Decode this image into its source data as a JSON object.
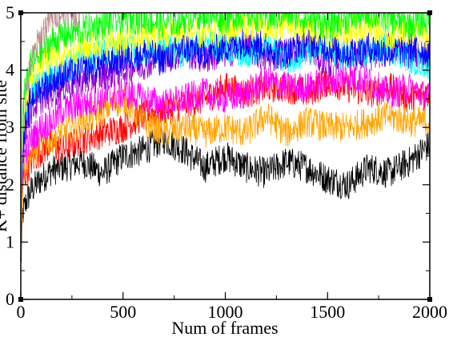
{
  "chart_data": {
    "type": "line",
    "title": "",
    "xlabel": "Num of frames",
    "ylabel": "K+ distance from site",
    "xlim": [
      0,
      2000
    ],
    "ylim": [
      0,
      5
    ],
    "xticks": [
      0,
      500,
      1000,
      1500,
      2000
    ],
    "yticks": [
      0,
      1,
      2,
      3,
      4,
      5
    ],
    "x_tick_labels": [
      "0",
      "500",
      "1000",
      "1500",
      "2000"
    ],
    "y_tick_labels": [
      "0",
      "1",
      "2",
      "3",
      "4",
      "5"
    ],
    "grid": false,
    "legend": "none",
    "series": [
      {
        "color": "#000000",
        "x": [
          0,
          10,
          25,
          50,
          100,
          150,
          200,
          300,
          400,
          500,
          600,
          700,
          800,
          900,
          1000,
          1100,
          1200,
          1300,
          1400,
          1500,
          1600,
          1700,
          1800,
          1900,
          2000
        ],
        "values": [
          0.6,
          1.5,
          1.7,
          1.9,
          2.1,
          2.25,
          2.3,
          2.4,
          2.2,
          2.5,
          2.6,
          2.8,
          2.6,
          2.3,
          2.5,
          2.3,
          2.2,
          2.4,
          2.3,
          2.1,
          2.0,
          2.3,
          2.2,
          2.4,
          2.7
        ]
      },
      {
        "color": "#ff0000",
        "x": [
          0,
          10,
          25,
          50,
          100,
          150,
          200,
          300,
          400,
          500,
          600,
          700,
          800,
          900,
          1000,
          1100,
          1200,
          1300,
          1400,
          1500,
          1600,
          1700,
          1800,
          1900,
          2000
        ],
        "values": [
          0.7,
          2.0,
          2.2,
          2.4,
          2.6,
          2.7,
          2.6,
          2.8,
          2.9,
          3.0,
          3.2,
          3.3,
          3.4,
          3.5,
          3.7,
          3.6,
          3.7,
          3.7,
          3.6,
          3.8,
          3.7,
          3.6,
          3.7,
          3.5,
          3.6
        ]
      },
      {
        "color": "#ffa500",
        "x": [
          0,
          10,
          25,
          50,
          100,
          150,
          200,
          300,
          400,
          500,
          600,
          700,
          800,
          900,
          1000,
          1100,
          1200,
          1300,
          1400,
          1500,
          1600,
          1700,
          1800,
          1900,
          2000
        ],
        "values": [
          0.8,
          2.1,
          2.4,
          2.5,
          2.7,
          2.8,
          2.9,
          3.1,
          3.3,
          3.5,
          3.1,
          2.9,
          3.0,
          2.9,
          3.0,
          2.9,
          3.2,
          2.9,
          3.1,
          3.0,
          3.0,
          3.1,
          3.2,
          3.1,
          3.1
        ]
      },
      {
        "color": "#ff00ff",
        "x": [
          0,
          10,
          25,
          50,
          100,
          150,
          200,
          300,
          400,
          500,
          600,
          700,
          800,
          900,
          1000,
          1100,
          1200,
          1300,
          1400,
          1500,
          1600,
          1700,
          1800,
          1900,
          2000
        ],
        "values": [
          0.9,
          2.3,
          2.6,
          2.8,
          3.0,
          3.1,
          3.3,
          3.4,
          3.5,
          3.6,
          3.5,
          3.4,
          3.5,
          3.6,
          3.5,
          3.6,
          3.8,
          3.7,
          3.7,
          3.8,
          3.9,
          3.8,
          3.6,
          3.7,
          3.5
        ]
      },
      {
        "color": "#9400d3",
        "x": [
          0,
          10,
          25,
          50,
          100,
          150,
          200,
          300,
          400,
          500,
          600,
          700,
          800,
          900,
          1000,
          1100,
          1200,
          1300,
          1400,
          1500,
          1600,
          1700,
          1800,
          1900,
          2000
        ],
        "values": [
          1.0,
          2.6,
          3.0,
          3.3,
          3.5,
          3.6,
          3.7,
          3.8,
          3.9,
          4.0,
          4.1,
          4.2,
          4.3,
          4.2,
          4.3,
          4.4,
          4.2,
          4.3,
          4.4,
          4.1,
          4.3,
          4.2,
          4.4,
          4.3,
          4.2
        ]
      },
      {
        "color": "#00ffff",
        "x": [
          0,
          10,
          25,
          50,
          100,
          150,
          200,
          300,
          400,
          500,
          600,
          700,
          800,
          900,
          1000,
          1100,
          1200,
          1300,
          1400,
          1500,
          1600,
          1700,
          1800,
          1900,
          2000
        ],
        "values": [
          1.1,
          2.9,
          3.3,
          3.6,
          3.8,
          3.9,
          4.0,
          4.2,
          4.3,
          4.4,
          4.3,
          4.4,
          4.3,
          4.5,
          4.4,
          4.3,
          4.4,
          4.2,
          4.3,
          4.4,
          4.2,
          4.3,
          4.4,
          4.2,
          4.1
        ]
      },
      {
        "color": "#0000ff",
        "x": [
          0,
          10,
          25,
          50,
          100,
          150,
          200,
          300,
          400,
          500,
          600,
          700,
          800,
          900,
          1000,
          1100,
          1200,
          1300,
          1400,
          1500,
          1600,
          1700,
          1800,
          1900,
          2000
        ],
        "values": [
          1.0,
          2.7,
          3.1,
          3.5,
          3.7,
          3.8,
          3.9,
          4.0,
          4.1,
          4.2,
          4.3,
          4.2,
          4.4,
          4.3,
          4.4,
          4.5,
          4.4,
          4.3,
          4.5,
          4.4,
          4.3,
          4.4,
          4.3,
          4.4,
          4.3
        ]
      },
      {
        "color": "#ffff00",
        "x": [
          0,
          10,
          25,
          50,
          100,
          150,
          200,
          300,
          400,
          500,
          600,
          700,
          800,
          900,
          1000,
          1100,
          1200,
          1300,
          1400,
          1500,
          1600,
          1700,
          1800,
          1900,
          2000
        ],
        "values": [
          1.2,
          3.0,
          3.5,
          3.9,
          4.1,
          4.2,
          4.3,
          4.4,
          4.5,
          4.5,
          4.6,
          4.6,
          4.7,
          4.6,
          4.7,
          4.8,
          4.7,
          4.8,
          4.7,
          4.6,
          4.7,
          4.8,
          4.6,
          4.7,
          4.5
        ]
      },
      {
        "color": "#00ff00",
        "x": [
          0,
          10,
          25,
          50,
          100,
          150,
          200,
          300,
          400,
          500,
          600,
          700,
          800,
          900,
          1000,
          1100,
          1200,
          1300,
          1400,
          1500,
          1600,
          1700,
          1800,
          1900,
          2000
        ],
        "values": [
          1.3,
          3.2,
          3.8,
          4.1,
          4.3,
          4.5,
          4.6,
          4.7,
          4.8,
          4.9,
          4.9,
          4.8,
          4.9,
          5.0,
          4.9,
          5.0,
          4.9,
          5.0,
          4.9,
          4.8,
          4.9,
          5.0,
          4.9,
          4.8,
          4.9
        ]
      },
      {
        "color": "#bc8f8f",
        "x": [
          0,
          10,
          25,
          50,
          75,
          100,
          125,
          150,
          175,
          200,
          230,
          260,
          290
        ],
        "values": [
          1.2,
          3.0,
          3.6,
          4.1,
          4.4,
          4.6,
          4.8,
          4.9,
          5.0,
          5.0,
          5.0,
          5.0,
          5.0
        ]
      }
    ]
  }
}
